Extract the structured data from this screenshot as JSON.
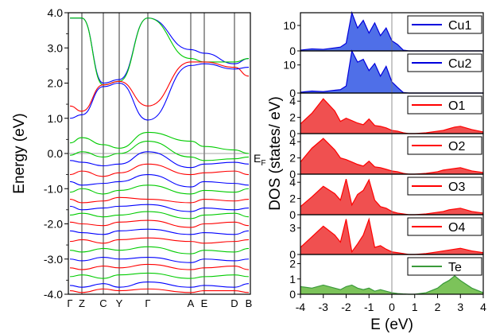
{
  "chart_data": [
    {
      "type": "line",
      "panel": "band-structure",
      "ylabel": "Energy (eV)",
      "ylim": [
        -4.0,
        4.0
      ],
      "y_ticks": [
        "4.0",
        "3.0",
        "2.0",
        "1.0",
        "0.0",
        "-1.0",
        "-2.0",
        "-3.0",
        "-4.0"
      ],
      "y_tick_values": [
        4.0,
        3.0,
        2.0,
        1.0,
        0.0,
        -1.0,
        -2.0,
        -3.0,
        -4.0
      ],
      "k_points": [
        "Γ",
        "Z",
        "C",
        "Y",
        "Γ",
        "A",
        "E",
        "D",
        "B"
      ],
      "fermi_label": "E",
      "fermi_label_sub": "F",
      "fermi_level": 0.0,
      "series_colors": [
        "#0000ff",
        "#ff0000",
        "#00cc00"
      ],
      "series": [
        {
          "color": "#0000ff",
          "values": [
            3.85,
            3.85,
            2.0,
            2.1,
            3.85,
            2.95,
            2.85,
            2.55,
            2.7
          ]
        },
        {
          "color": "#00cc00",
          "values": [
            3.85,
            3.85,
            1.95,
            2.05,
            3.85,
            2.7,
            2.6,
            2.6,
            2.7
          ]
        },
        {
          "color": "#ff0000",
          "values": [
            1.35,
            1.2,
            1.95,
            2.05,
            1.35,
            2.6,
            2.6,
            2.45,
            2.2
          ]
        },
        {
          "color": "#0000ff",
          "values": [
            1.0,
            1.1,
            1.9,
            2.0,
            0.95,
            2.5,
            2.55,
            2.4,
            2.45
          ]
        },
        {
          "color": "#00cc00",
          "values": [
            0.3,
            0.45,
            0.25,
            0.15,
            0.6,
            0.35,
            0.2,
            0.1,
            0.0
          ]
        },
        {
          "color": "#00cc00",
          "values": [
            -0.05,
            0.05,
            -0.1,
            0.0,
            0.35,
            -0.1,
            -0.2,
            -0.15,
            -0.1
          ]
        },
        {
          "color": "#0000ff",
          "values": [
            -0.2,
            -0.25,
            -0.35,
            -0.3,
            0.05,
            -0.4,
            -0.3,
            -0.25,
            -0.3
          ]
        },
        {
          "color": "#ff0000",
          "values": [
            -0.6,
            -0.5,
            -0.65,
            -0.55,
            -0.3,
            -0.6,
            -0.55,
            -0.5,
            -0.6
          ]
        },
        {
          "color": "#0000ff",
          "values": [
            -0.8,
            -0.9,
            -0.85,
            -0.8,
            -0.6,
            -0.95,
            -0.8,
            -0.85,
            -0.9
          ]
        },
        {
          "color": "#00cc00",
          "values": [
            -1.1,
            -1.0,
            -1.15,
            -1.05,
            -0.9,
            -1.15,
            -1.05,
            -1.1,
            -1.0
          ]
        },
        {
          "color": "#ff0000",
          "values": [
            -1.3,
            -1.4,
            -1.35,
            -1.25,
            -1.3,
            -1.4,
            -1.3,
            -1.35,
            -1.3
          ]
        },
        {
          "color": "#0000ff",
          "values": [
            -1.5,
            -1.6,
            -1.55,
            -1.5,
            -1.45,
            -1.65,
            -1.55,
            -1.6,
            -1.55
          ]
        },
        {
          "color": "#00cc00",
          "values": [
            -1.75,
            -1.7,
            -1.8,
            -1.75,
            -1.65,
            -1.85,
            -1.75,
            -1.7,
            -1.8
          ]
        },
        {
          "color": "#ff0000",
          "values": [
            -1.95,
            -2.0,
            -2.05,
            -1.95,
            -1.9,
            -2.1,
            -2.0,
            -1.95,
            -2.05
          ]
        },
        {
          "color": "#0000ff",
          "values": [
            -2.2,
            -2.25,
            -2.3,
            -2.2,
            -2.15,
            -2.3,
            -2.25,
            -2.3,
            -2.2
          ]
        },
        {
          "color": "#ff0000",
          "values": [
            -2.5,
            -2.45,
            -2.55,
            -2.45,
            -2.4,
            -2.5,
            -2.55,
            -2.5,
            -2.45
          ]
        },
        {
          "color": "#00cc00",
          "values": [
            -2.75,
            -2.8,
            -2.7,
            -2.75,
            -2.65,
            -2.85,
            -2.75,
            -2.8,
            -2.7
          ]
        },
        {
          "color": "#0000ff",
          "values": [
            -3.0,
            -3.05,
            -2.95,
            -3.0,
            -2.95,
            -3.1,
            -3.0,
            -3.05,
            -3.0
          ]
        },
        {
          "color": "#ff0000",
          "values": [
            -3.25,
            -3.3,
            -3.2,
            -3.25,
            -3.15,
            -3.3,
            -3.25,
            -3.2,
            -3.3
          ]
        },
        {
          "color": "#00cc00",
          "values": [
            -3.5,
            -3.45,
            -3.55,
            -3.45,
            -3.4,
            -3.55,
            -3.5,
            -3.45,
            -3.5
          ]
        },
        {
          "color": "#0000ff",
          "values": [
            -3.75,
            -3.8,
            -3.7,
            -3.8,
            -3.65,
            -3.8,
            -3.75,
            -3.8,
            -3.7
          ]
        },
        {
          "color": "#ff0000",
          "values": [
            -3.9,
            -3.95,
            -3.85,
            -3.9,
            -3.85,
            -3.95,
            -3.9,
            -3.9,
            -3.95
          ]
        }
      ]
    },
    {
      "type": "area",
      "panel": "pdos",
      "xlabel": "E (eV)",
      "ylabel": "DOS (states/ eV)",
      "xlim": [
        -4,
        4
      ],
      "x_ticks": [
        "-4",
        "-3",
        "-2",
        "-1",
        "0",
        "1",
        "2",
        "3",
        "4"
      ],
      "x_tick_values": [
        -4,
        -3,
        -2,
        -1,
        0,
        1,
        2,
        3,
        4
      ],
      "x": [
        -4.0,
        -3.5,
        -3.0,
        -2.5,
        -2.25,
        -2.0,
        -1.75,
        -1.5,
        -1.25,
        -1.0,
        -0.75,
        -0.5,
        -0.25,
        0.0,
        0.25,
        0.5,
        0.75,
        1.0,
        1.5,
        2.0,
        2.25,
        2.5,
        2.75,
        3.0,
        3.5,
        4.0
      ],
      "subpanels": [
        {
          "name": "Cu1",
          "color": "#0000dd",
          "fill": "#4f6fe8",
          "ylim": [
            0,
            15
          ],
          "y_ticks": [
            "0",
            "10"
          ],
          "y_tick_values": [
            0,
            10
          ],
          "values": [
            0.3,
            0.8,
            0.6,
            1.2,
            1.5,
            3.0,
            15.0,
            9.0,
            12.0,
            7.0,
            11.0,
            6.0,
            9.0,
            4.0,
            2.5,
            0.3,
            0,
            0,
            0,
            0,
            0,
            0,
            0,
            0,
            0,
            0
          ]
        },
        {
          "name": "Cu2",
          "color": "#0000dd",
          "fill": "#4f6fe8",
          "ylim": [
            0,
            15
          ],
          "y_ticks": [
            "0",
            "10"
          ],
          "y_tick_values": [
            0,
            10
          ],
          "values": [
            0.3,
            0.7,
            0.5,
            1.0,
            1.2,
            2.5,
            15.0,
            11.0,
            12.0,
            8.0,
            10.5,
            6.0,
            9.5,
            4.0,
            2.0,
            0.2,
            0,
            0,
            0,
            0,
            0,
            0,
            0,
            0,
            0,
            0
          ]
        },
        {
          "name": "O1",
          "color": "#ff0000",
          "fill": "#f05050",
          "ylim": [
            0,
            5
          ],
          "y_ticks": [
            "0",
            "2",
            "4"
          ],
          "y_tick_values": [
            0,
            2,
            4
          ],
          "values": [
            1.2,
            2.5,
            4.3,
            2.8,
            1.5,
            1.9,
            1.6,
            1.3,
            1.1,
            1.8,
            1.0,
            0.9,
            0.7,
            0.4,
            0.3,
            0.1,
            0,
            0,
            0.1,
            0.3,
            0.4,
            0.6,
            0.8,
            0.9,
            0.5,
            0.2
          ]
        },
        {
          "name": "O2",
          "color": "#ff0000",
          "fill": "#f05050",
          "ylim": [
            0,
            5
          ],
          "y_ticks": [
            "0",
            "2",
            "4"
          ],
          "y_tick_values": [
            0,
            2,
            4
          ],
          "values": [
            1.5,
            3.2,
            4.4,
            3.0,
            2.0,
            1.8,
            1.5,
            1.2,
            1.0,
            1.6,
            0.9,
            0.8,
            0.6,
            0.4,
            0.3,
            0.1,
            0,
            0,
            0.1,
            0.3,
            0.5,
            0.6,
            0.7,
            0.8,
            0.4,
            0.2
          ]
        },
        {
          "name": "O3",
          "color": "#ff0000",
          "fill": "#f05050",
          "ylim": [
            0,
            5
          ],
          "y_ticks": [
            "0",
            "2",
            "4"
          ],
          "y_tick_values": [
            0,
            2,
            4
          ],
          "values": [
            1.0,
            2.2,
            3.5,
            2.6,
            1.8,
            4.4,
            1.2,
            2.5,
            3.0,
            4.3,
            1.8,
            1.0,
            0.8,
            0.4,
            0.2,
            0.1,
            0,
            0,
            0.1,
            0.3,
            0.4,
            0.6,
            0.7,
            0.8,
            0.4,
            0.2
          ]
        },
        {
          "name": "O4",
          "color": "#ff0000",
          "fill": "#f05050",
          "ylim": [
            0,
            4.5
          ],
          "y_ticks": [
            "0",
            "3"
          ],
          "y_tick_values": [
            0,
            3
          ],
          "values": [
            0.8,
            2.0,
            3.2,
            2.2,
            1.4,
            4.0,
            0.3,
            1.2,
            2.2,
            4.0,
            0.8,
            1.0,
            0.6,
            0.3,
            0.2,
            0.1,
            0,
            0,
            0.1,
            0.3,
            0.4,
            0.5,
            0.6,
            0.7,
            0.4,
            0.2
          ]
        },
        {
          "name": "Te",
          "color": "#3a9a3a",
          "fill": "#7cc35a",
          "ylim": [
            0,
            2.6
          ],
          "y_ticks": [
            "0",
            "1",
            "2"
          ],
          "y_tick_values": [
            0,
            1,
            2
          ],
          "values": [
            0.5,
            0.4,
            0.6,
            0.4,
            0.3,
            0.5,
            0.6,
            0.4,
            0.3,
            0.4,
            0.2,
            0.3,
            0.2,
            0.1,
            0.05,
            0.02,
            0,
            0,
            0.1,
            0.4,
            0.7,
            0.9,
            1.2,
            0.9,
            0.4,
            0.1
          ]
        }
      ]
    }
  ]
}
